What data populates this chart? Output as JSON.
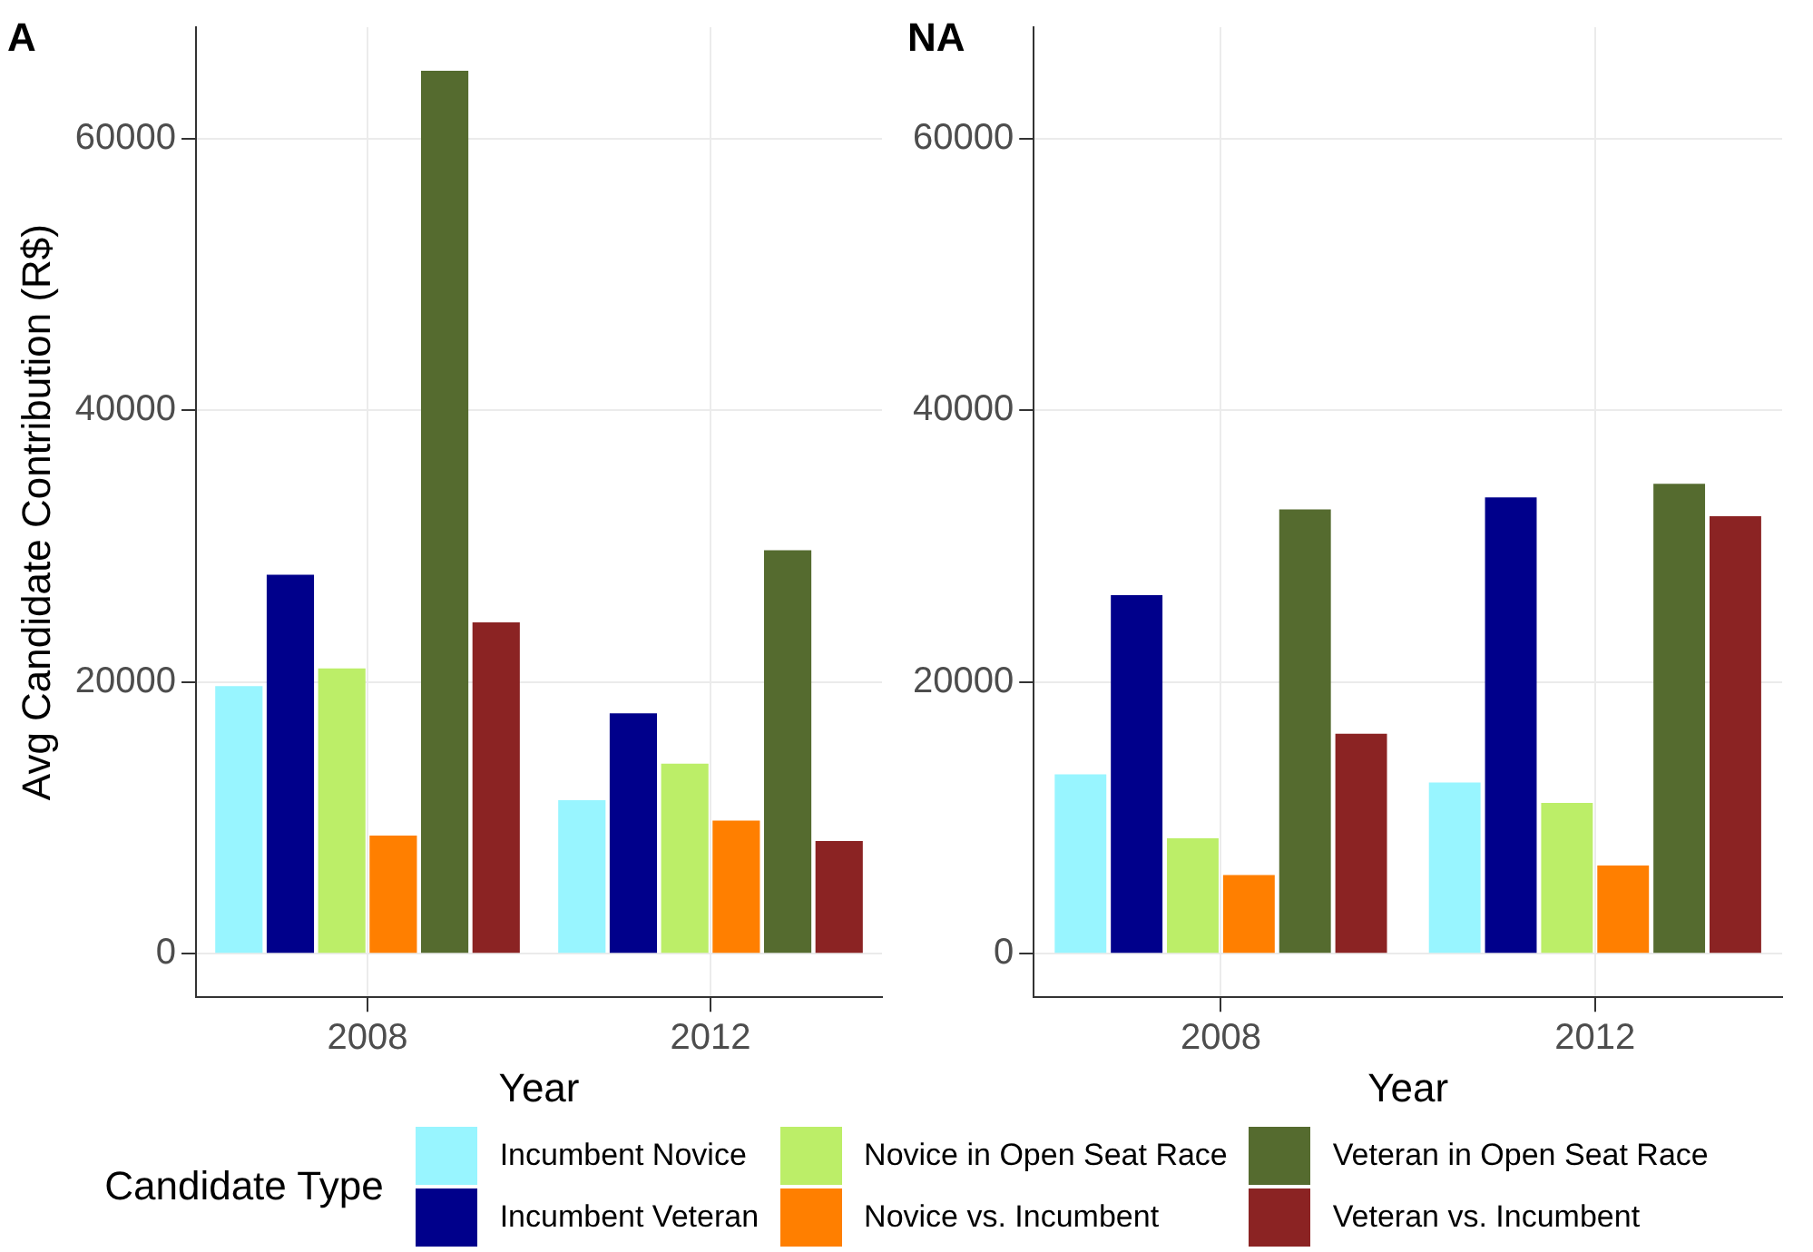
{
  "chart_data": [
    {
      "type": "bar",
      "title": "A",
      "xlabel": "Year",
      "ylabel": "Avg Candidate Contribution (R$)",
      "legend_title": "Candidate Type",
      "legend": "bottom",
      "grid": true,
      "categories": [
        "2008",
        "2012"
      ],
      "ylim": [
        -3200,
        68200
      ],
      "yticks": [
        0,
        20000,
        40000,
        60000
      ],
      "series": [
        {
          "name": "Incumbent Novice",
          "color": "#98f5ff",
          "values": [
            19700,
            11300
          ]
        },
        {
          "name": "Incumbent Veteran",
          "color": "#00008b",
          "values": [
            27900,
            17700
          ]
        },
        {
          "name": "Novice in Open Seat Race",
          "color": "#bcee68",
          "values": [
            21000,
            14000
          ]
        },
        {
          "name": "Novice vs. Incumbent",
          "color": "#ff7f00",
          "values": [
            8700,
            9800
          ]
        },
        {
          "name": "Veteran in Open Seat Race",
          "color": "#556b2f",
          "values": [
            65000,
            29700
          ]
        },
        {
          "name": "Veteran vs. Incumbent",
          "color": "#8b2323",
          "values": [
            24400,
            8300
          ]
        }
      ]
    },
    {
      "type": "bar",
      "title": "NA",
      "xlabel": "Year",
      "grid": true,
      "categories": [
        "2008",
        "2012"
      ],
      "ylim": [
        -3200,
        68200
      ],
      "yticks": [
        0,
        20000,
        40000,
        60000
      ],
      "series": [
        {
          "color": "#98f5ff",
          "values": [
            13200,
            12600
          ]
        },
        {
          "color": "#00008b",
          "values": [
            26400,
            33600
          ]
        },
        {
          "color": "#bcee68",
          "values": [
            8500,
            11100
          ]
        },
        {
          "color": "#ff7f00",
          "values": [
            5800,
            6500
          ]
        },
        {
          "color": "#556b2f",
          "values": [
            32700,
            34600
          ]
        },
        {
          "color": "#8b2323",
          "values": [
            16200,
            32200
          ]
        }
      ]
    }
  ]
}
